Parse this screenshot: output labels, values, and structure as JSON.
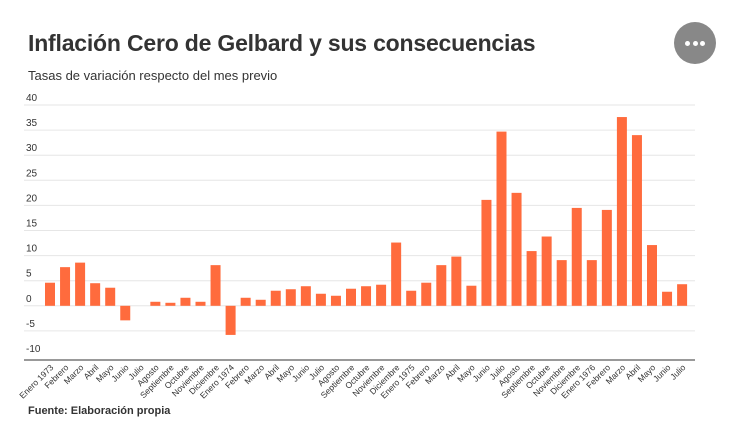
{
  "title": "Inflación Cero de Gelbard y sus consecuencias",
  "subtitle": "Tasas de variación respecto del mes previo",
  "source": "Fuente: Elaboración propia",
  "colors": {
    "bar": "#ff6b3d",
    "grid": "#e6e6e6",
    "axis": "#333333",
    "text": "#333333"
  },
  "menu": {
    "icon": "ellipsis-icon"
  },
  "chart_data": {
    "type": "bar",
    "categories": [
      "Enero 1973",
      "Febrero",
      "Marzo",
      "Abril",
      "Mayo",
      "Junio",
      "Julio",
      "Agosto",
      "Septiembre",
      "Octubre",
      "Noviembre",
      "Diciembre",
      "Enero 1974",
      "Febrero",
      "Marzo",
      "Abril",
      "Mayo",
      "Junio",
      "Julio",
      "Agosto",
      "Septiembre",
      "Octubre",
      "Noviembre",
      "Diciembre",
      "Enero 1975",
      "Febrero",
      "Marzo",
      "Abril",
      "Mayo",
      "Junio",
      "Julio",
      "Agosto",
      "Septiembre",
      "Octubre",
      "Noviembre",
      "Diciembre",
      "Enero 1976",
      "Febrero",
      "Marzo",
      "Abril",
      "Mayo",
      "Junio",
      "Julio"
    ],
    "values": [
      4.6,
      7.7,
      8.6,
      4.5,
      3.6,
      -2.9,
      0,
      0.8,
      0.6,
      1.6,
      0.8,
      8.1,
      -5.8,
      1.6,
      1.2,
      3,
      3.3,
      3.9,
      2.4,
      2,
      3.4,
      3.9,
      4.2,
      12.6,
      3,
      4.6,
      8.1,
      9.8,
      4,
      21.1,
      34.7,
      22.5,
      10.9,
      13.8,
      9.1,
      19.5,
      9.1,
      19.1,
      37.6,
      34,
      12.1,
      2.8,
      4.3
    ],
    "ylim": [
      -10,
      40
    ],
    "yticks": [
      -10,
      -5,
      0,
      5,
      10,
      15,
      20,
      25,
      30,
      35,
      40
    ],
    "grid": true,
    "legend": "none"
  }
}
